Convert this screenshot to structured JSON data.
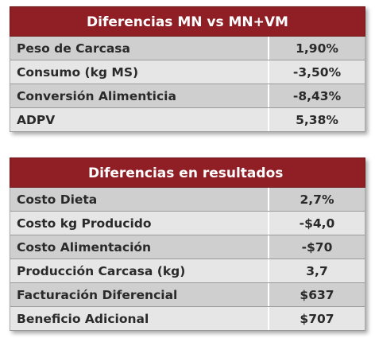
{
  "table1": {
    "title": "Diferencias MN vs MN+VM",
    "rows": [
      {
        "label": "Peso de Carcasa",
        "value": "1,90%"
      },
      {
        "label": "Consumo (kg MS)",
        "value": "-3,50%"
      },
      {
        "label": "Conversión Alimenticia",
        "value": "-8,43%"
      },
      {
        "label": "ADPV",
        "value": "5,38%"
      }
    ]
  },
  "table2": {
    "title": "Diferencias en resultados",
    "rows": [
      {
        "label": "Costo Dieta",
        "value": "2,7%"
      },
      {
        "label": "Costo kg Producido",
        "value": "-$4,0"
      },
      {
        "label": "Costo Alimentación",
        "value": "-$70"
      },
      {
        "label": "Producción Carcasa (kg)",
        "value": "3,7"
      },
      {
        "label": "Facturación Diferencial",
        "value": "$637"
      },
      {
        "label": "Beneficio Adicional",
        "value": "$707"
      }
    ]
  },
  "colors": {
    "header_bg": "#8f1f25",
    "header_text": "#ffffff",
    "row_dark": "#cfcfcf",
    "row_light": "#e6e6e6",
    "text": "#2a2a2a"
  }
}
